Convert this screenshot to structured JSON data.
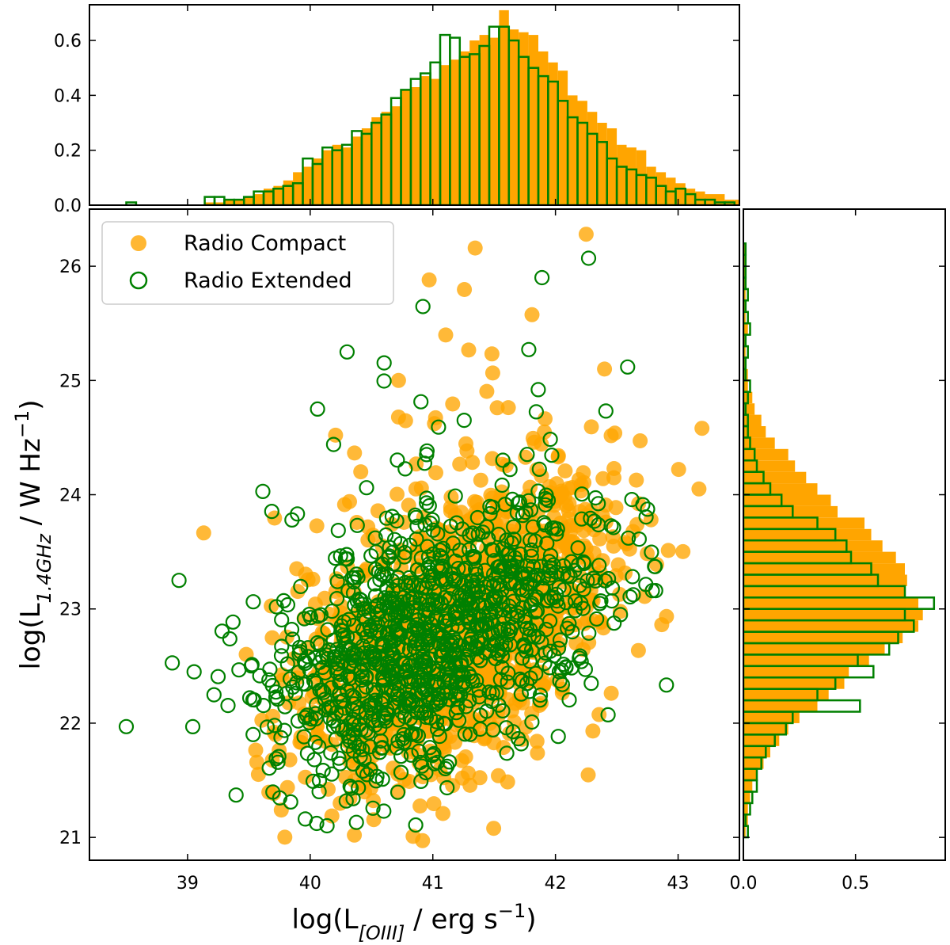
{
  "chart_data": [
    {
      "type": "scatter",
      "panel": "main",
      "xlabel": "log(L[OIII] / erg s⁻¹)",
      "xlabel_parts": {
        "pre": "log(L",
        "sub": "[OIII]",
        "post": " / erg s",
        "sup": "−1",
        "end": ")"
      },
      "ylabel": "log(L1.4GHz / W Hz⁻¹)",
      "ylabel_parts": {
        "pre": "log(L",
        "sub": "1.4GHz",
        "post": " / W Hz",
        "sup": "−1",
        "end": ")"
      },
      "xlim": [
        38.2,
        43.5
      ],
      "ylim": [
        20.8,
        26.5
      ],
      "xticks": [
        "39",
        "40",
        "41",
        "42",
        "43"
      ],
      "yticks": [
        "21",
        "22",
        "23",
        "24",
        "25",
        "26"
      ],
      "legend_position": "top-left",
      "series": [
        {
          "name": "Radio Compact",
          "color": "#ffa500",
          "marker": "filled-circle",
          "approx_count": 1400,
          "center": [
            41.2,
            22.8
          ],
          "std": [
            0.62,
            0.62
          ],
          "correlation": 0.5,
          "notable_points": [
            [
              42.25,
              26.28
            ],
            [
              43.17,
              24.05
            ],
            [
              40.36,
              21.02
            ],
            [
              40.72,
              25.0
            ],
            [
              42.4,
              25.1
            ],
            [
              40.97,
              25.88
            ]
          ]
        },
        {
          "name": "Radio Extended",
          "color": "#008000",
          "marker": "open-circle",
          "approx_count": 1100,
          "center": [
            41.0,
            22.7
          ],
          "std": [
            0.7,
            0.58
          ],
          "correlation": 0.45,
          "notable_points": [
            [
              38.5,
              21.97
            ],
            [
              38.93,
              23.25
            ],
            [
              42.27,
              26.07
            ],
            [
              41.89,
              25.9
            ],
            [
              42.79,
              23.16
            ],
            [
              40.06,
              24.75
            ],
            [
              40.6,
              21.23
            ],
            [
              40.27,
              22.2
            ],
            [
              42.53,
              22.95
            ]
          ]
        }
      ]
    },
    {
      "type": "bar",
      "panel": "top-histogram",
      "xlim": [
        38.2,
        43.5
      ],
      "ylim": [
        0,
        0.73
      ],
      "yticks": [
        "0.0",
        "0.2",
        "0.4",
        "0.6"
      ],
      "bin_start": 38.5,
      "bin_width": 0.08,
      "series": [
        {
          "name": "Radio Compact",
          "style": "filled",
          "color": "#ffa500",
          "values": [
            0,
            0,
            0,
            0,
            0,
            0,
            0,
            0,
            0.01,
            0.01,
            0.02,
            0.02,
            0.03,
            0.04,
            0.06,
            0.07,
            0.09,
            0.12,
            0.14,
            0.17,
            0.2,
            0.22,
            0.21,
            0.25,
            0.28,
            0.32,
            0.34,
            0.36,
            0.42,
            0.43,
            0.47,
            0.46,
            0.51,
            0.53,
            0.56,
            0.6,
            0.62,
            0.61,
            0.71,
            0.64,
            0.63,
            0.62,
            0.56,
            0.52,
            0.49,
            0.4,
            0.38,
            0.34,
            0.3,
            0.28,
            0.22,
            0.21,
            0.2,
            0.14,
            0.12,
            0.1,
            0.08,
            0.06,
            0.05,
            0.04,
            0.04,
            0.02,
            0.02,
            0.01,
            0.01,
            0,
            0.01
          ]
        },
        {
          "name": "Radio Extended",
          "style": "outline",
          "color": "#008000",
          "values": [
            0.01,
            0,
            0,
            0,
            0,
            0,
            0,
            0,
            0.03,
            0.03,
            0.02,
            0.02,
            0.03,
            0.05,
            0.05,
            0.06,
            0.07,
            0.08,
            0.17,
            0.15,
            0.21,
            0.2,
            0.22,
            0.27,
            0.26,
            0.3,
            0.33,
            0.39,
            0.42,
            0.46,
            0.48,
            0.52,
            0.62,
            0.61,
            0.54,
            0.55,
            0.58,
            0.65,
            0.65,
            0.6,
            0.54,
            0.5,
            0.47,
            0.45,
            0.38,
            0.32,
            0.3,
            0.26,
            0.23,
            0.17,
            0.14,
            0.13,
            0.11,
            0.1,
            0.07,
            0.05,
            0.06,
            0.04,
            0.02,
            0.02,
            0.01,
            0.01,
            0,
            0,
            0,
            0,
            0
          ]
        }
      ]
    },
    {
      "type": "bar",
      "panel": "right-histogram",
      "orientation": "horizontal",
      "xlim": [
        0,
        0.9
      ],
      "xticks": [
        "0.0",
        "0.5"
      ],
      "ylim": [
        20.8,
        26.5
      ],
      "bin_start": 21.0,
      "bin_width": 0.1,
      "series": [
        {
          "name": "Radio Compact",
          "style": "filled",
          "color": "#ffa500",
          "values": [
            0.01,
            0.02,
            0.02,
            0.03,
            0.04,
            0.06,
            0.09,
            0.12,
            0.16,
            0.2,
            0.25,
            0.33,
            0.38,
            0.45,
            0.47,
            0.56,
            0.63,
            0.71,
            0.78,
            0.8,
            0.78,
            0.72,
            0.73,
            0.72,
            0.68,
            0.62,
            0.57,
            0.54,
            0.42,
            0.39,
            0.33,
            0.28,
            0.23,
            0.2,
            0.14,
            0.1,
            0.08,
            0.05,
            0.04,
            0.02,
            0.02,
            0.01,
            0.01,
            0.01,
            0.02,
            0.01,
            0.01,
            0.01,
            0.01,
            0.01,
            0.01,
            0.01
          ]
        },
        {
          "name": "Radio Extended",
          "style": "outline",
          "color": "#008000",
          "values": [
            0.02,
            0.01,
            0.03,
            0.04,
            0.06,
            0.06,
            0.08,
            0.1,
            0.14,
            0.19,
            0.22,
            0.52,
            0.33,
            0.41,
            0.58,
            0.51,
            0.65,
            0.69,
            0.76,
            0.72,
            0.85,
            0.72,
            0.6,
            0.57,
            0.48,
            0.46,
            0.41,
            0.33,
            0.22,
            0.17,
            0.12,
            0.09,
            0.06,
            0.05,
            0.03,
            0.02,
            0.02,
            0.01,
            0.02,
            0.03,
            0.01,
            0.01,
            0.02,
            0.01,
            0.03,
            0.02,
            0.01,
            0.02,
            0.01,
            0.01,
            0.01,
            0.01
          ]
        }
      ]
    }
  ]
}
